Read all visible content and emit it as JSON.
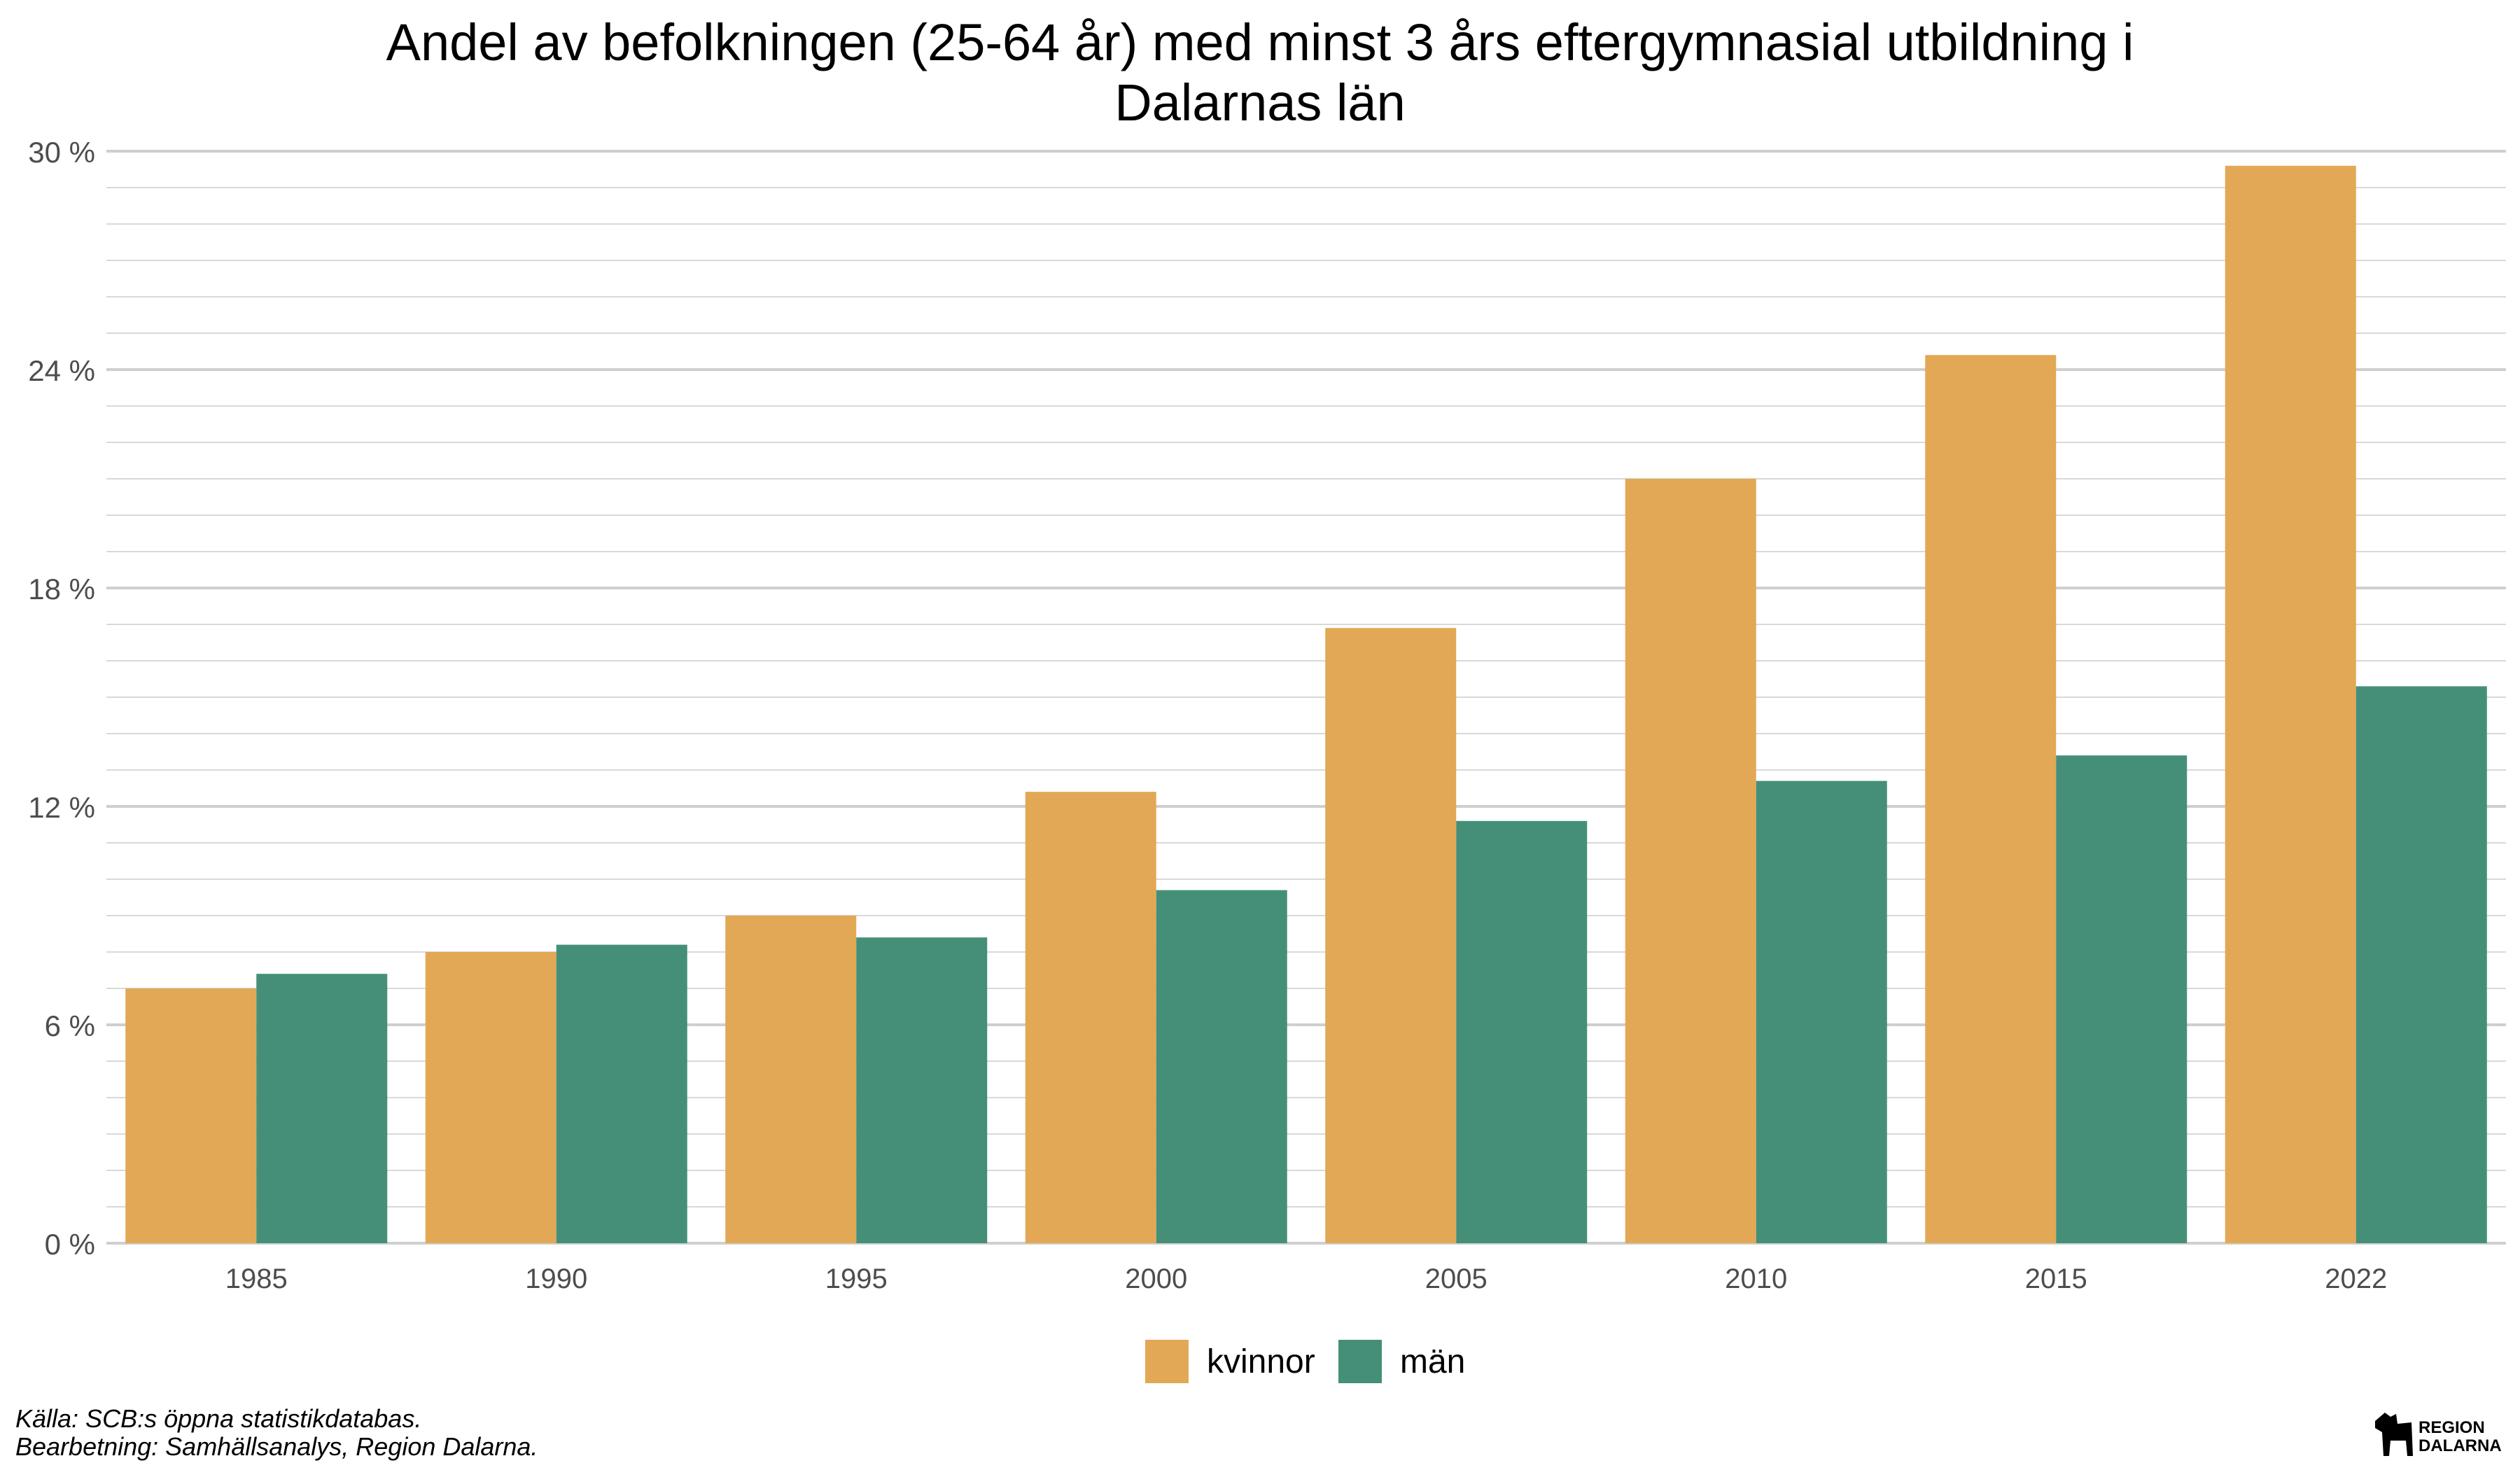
{
  "chart_data": {
    "type": "bar",
    "title": "Andel av befolkningen (25-64 år) med minst 3 års eftergymnasial utbildning i Dalarnas län",
    "title_lines": [
      "Andel av befolkningen (25-64 år) med minst 3 års eftergymnasial utbildning i",
      "Dalarnas län"
    ],
    "xlabel": "",
    "ylabel": "",
    "categories": [
      "1985",
      "1990",
      "1995",
      "2000",
      "2005",
      "2010",
      "2015",
      "2022"
    ],
    "series": [
      {
        "name": "kvinnor",
        "color": "#E2A855",
        "values": [
          7.0,
          8.0,
          9.0,
          12.4,
          16.9,
          21.0,
          24.4,
          29.6
        ]
      },
      {
        "name": "män",
        "color": "#458F79",
        "values": [
          7.4,
          8.2,
          8.4,
          9.7,
          11.6,
          12.7,
          13.4,
          15.3
        ]
      }
    ],
    "ylim": [
      0,
      30
    ],
    "yticks": [
      0,
      6,
      12,
      18,
      24,
      30
    ],
    "ytick_labels": [
      "0 %",
      "6 %",
      "12 %",
      "18 %",
      "24 %",
      "30 %"
    ],
    "grid": true,
    "legend_position": "bottom"
  },
  "caption": {
    "source": "Källa: SCB:s öppna statistikdatabas.",
    "processing": "Bearbetning: Samhällsanalys, Region Dalarna."
  },
  "logo": {
    "line1": "REGION",
    "line2": "DALARNA",
    "icon": "dala-horse-icon"
  }
}
